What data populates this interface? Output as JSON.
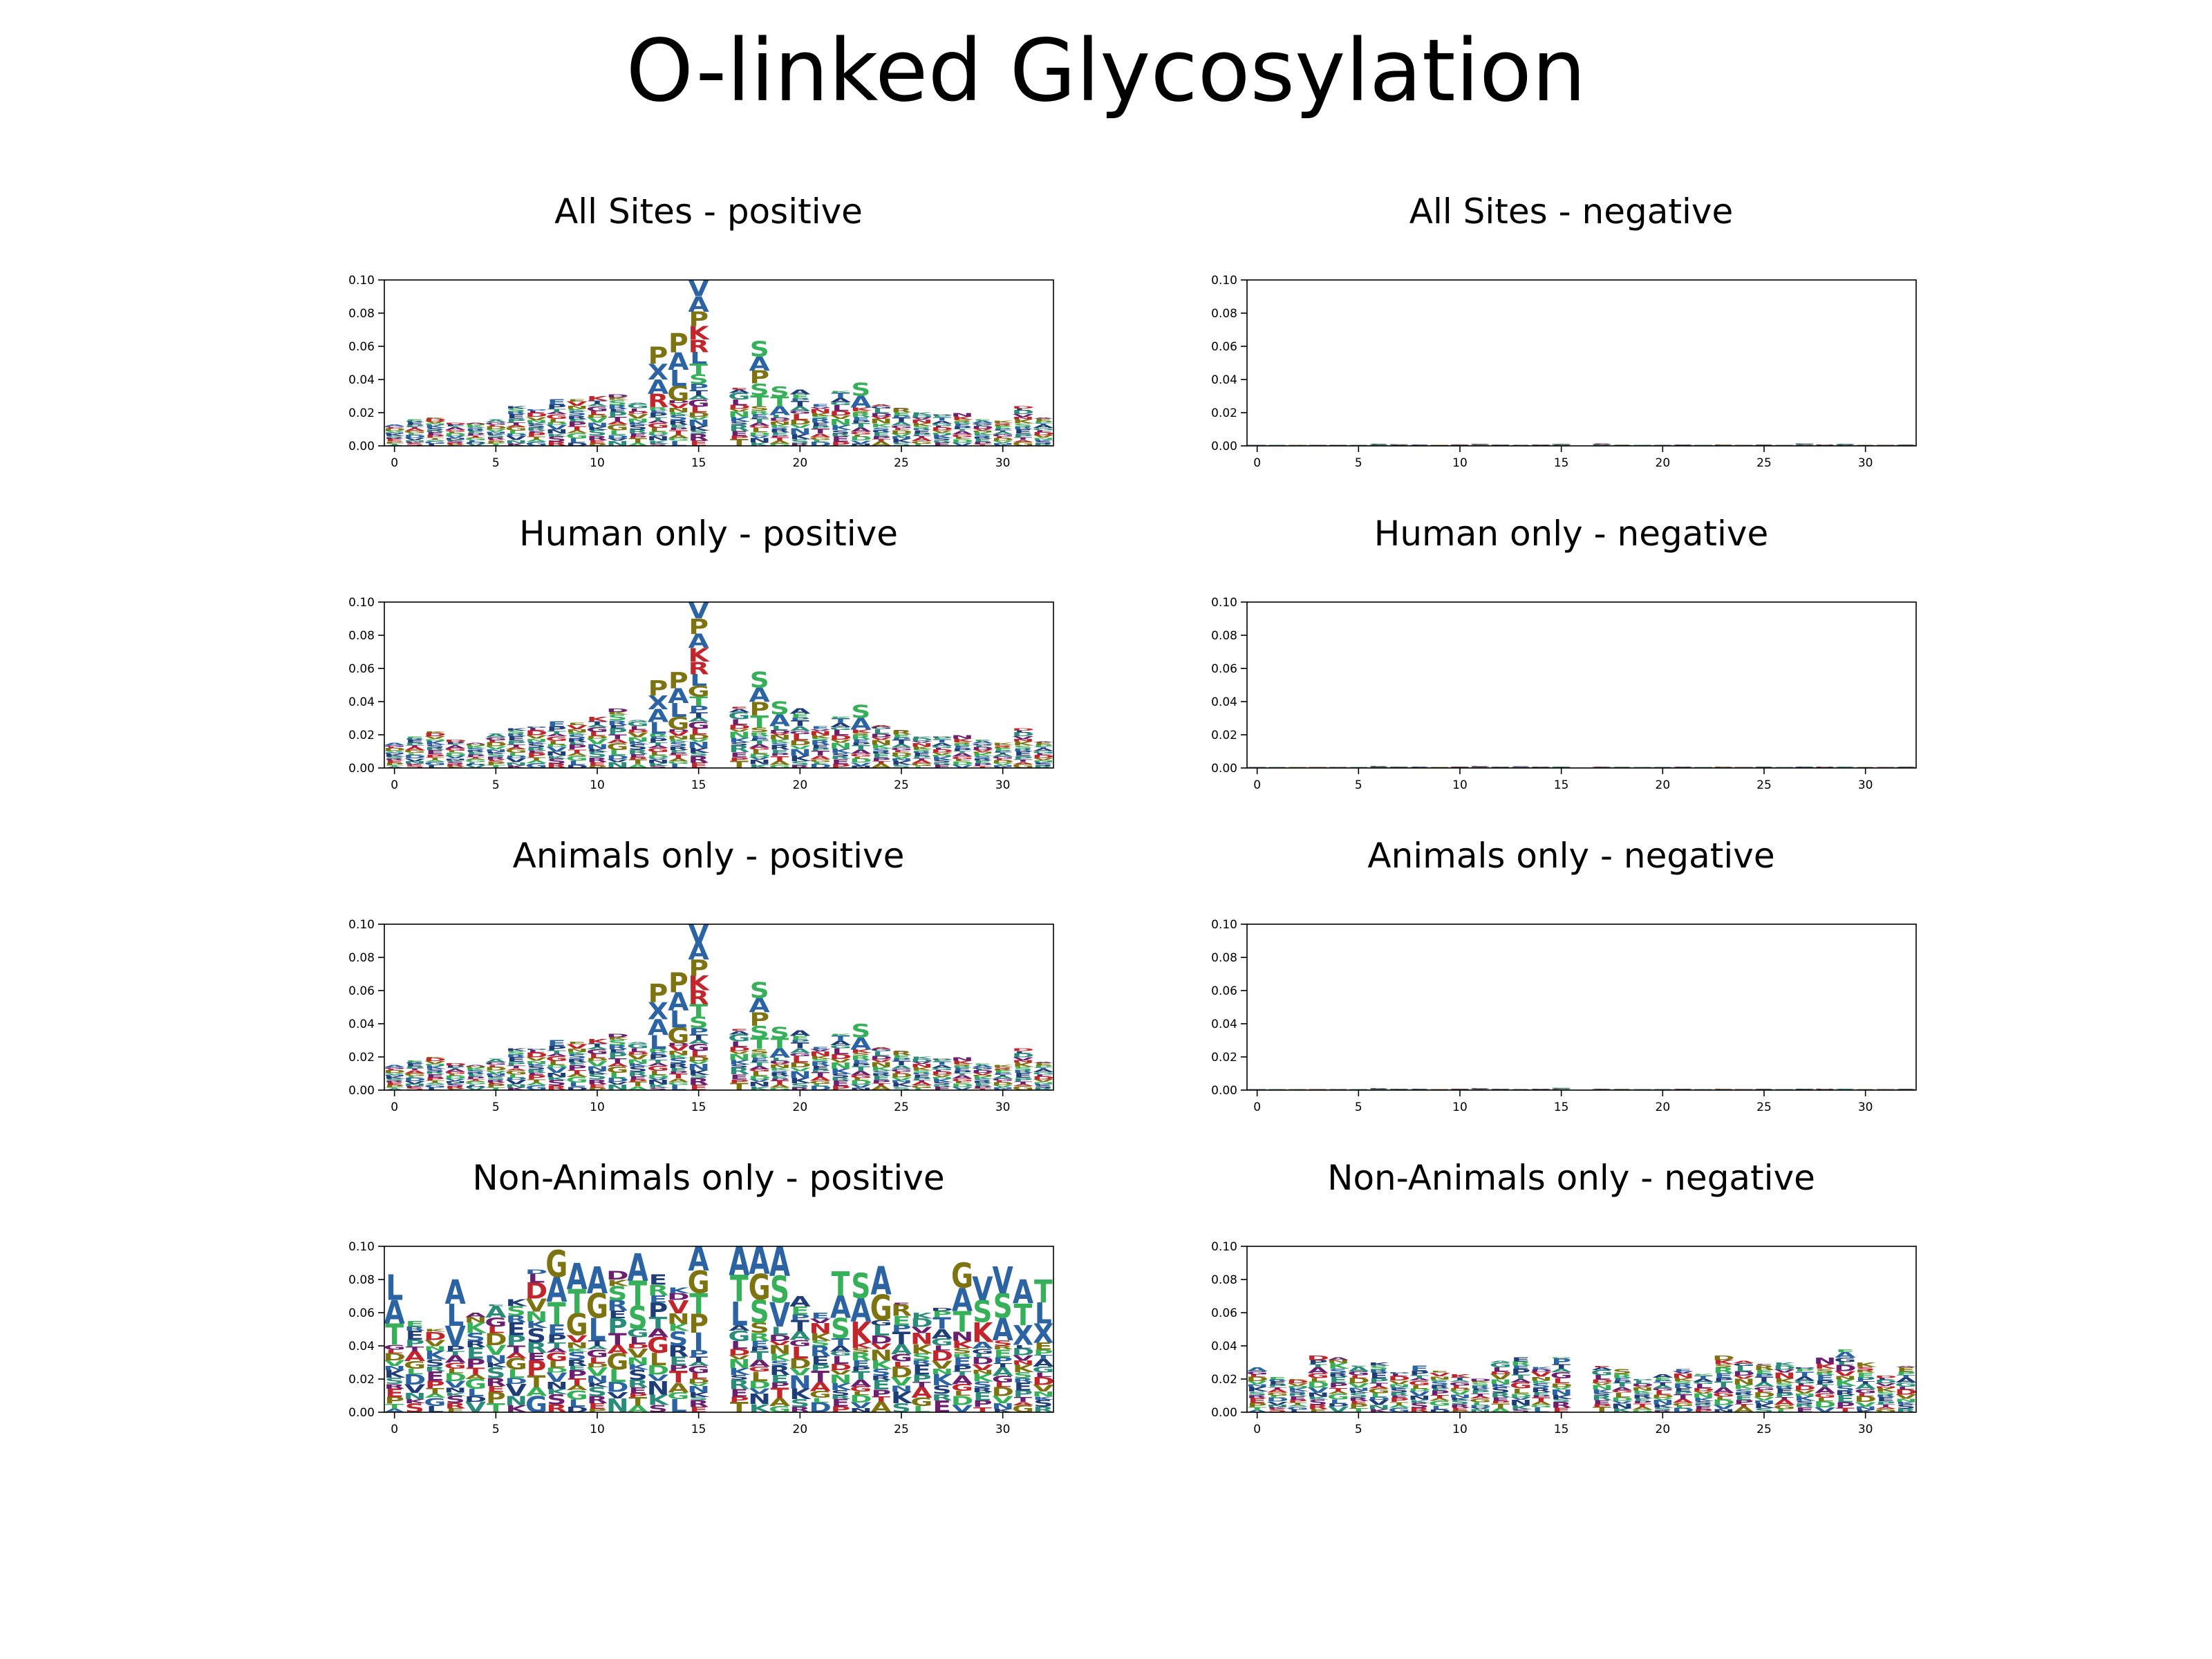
{
  "figure": {
    "title": "O-linked Glycosylation"
  },
  "colors": {
    "axis": "#000000",
    "blue": "#2b63a3",
    "green": "#37b05a",
    "olive": "#7d7310",
    "red": "#c0262b",
    "purple": "#6b1f6e",
    "teal": "#2c8c7a",
    "darkblue": "#1f3e77"
  },
  "axis_defaults": {
    "xlim": [
      -0.5,
      32.5
    ],
    "ylim": [
      0,
      0.1
    ],
    "x_ticks": [
      0,
      5,
      10,
      15,
      20,
      25,
      30
    ],
    "x_tick_labels": [
      "0",
      "5",
      "10",
      "15",
      "20",
      "25",
      "30"
    ],
    "y_ticks": [
      0,
      0.02,
      0.04,
      0.06,
      0.08,
      0.1
    ],
    "y_tick_labels": [
      "0.00",
      "0.02",
      "0.04",
      "0.06",
      "0.08",
      "0.10"
    ]
  },
  "chart_data": [
    {
      "type": "sequence-logo",
      "title": "All Sites - positive",
      "x": [
        0,
        32
      ],
      "missing_position": 16,
      "totals": [
        0.013,
        0.016,
        0.017,
        0.014,
        0.014,
        0.016,
        0.024,
        0.022,
        0.028,
        0.028,
        0.03,
        0.031,
        0.026,
        0.06,
        0.068,
        0.1,
        0,
        0.035,
        0.063,
        0.036,
        0.034,
        0.025,
        0.033,
        0.038,
        0.025,
        0.023,
        0.02,
        0.019,
        0.02,
        0.016,
        0.015,
        0.024,
        0.017
      ],
      "top_letters": [
        {
          "x": 13,
          "letters": [
            "P",
            "X",
            "A",
            "R"
          ]
        },
        {
          "x": 14,
          "letters": [
            "P",
            "A",
            "L",
            "G"
          ]
        },
        {
          "x": 15,
          "letters": [
            "V",
            "A",
            "P",
            "K",
            "R",
            "L",
            "T",
            "S"
          ]
        },
        {
          "x": 18,
          "letters": [
            "S",
            "A",
            "P",
            "S",
            "T"
          ]
        },
        {
          "x": 19,
          "letters": [
            "S",
            "T",
            "A"
          ]
        },
        {
          "x": 23,
          "letters": [
            "S",
            "A"
          ]
        }
      ]
    },
    {
      "type": "sequence-logo",
      "title": "All Sites - negative",
      "x": [
        0,
        32
      ],
      "missing_position": 16,
      "totals": [
        0.0005,
        0.0005,
        0.0004,
        0.0005,
        0.0004,
        0.0005,
        0.0012,
        0.0008,
        0.0006,
        0.0005,
        0.0007,
        0.0011,
        0.0006,
        0.0005,
        0.0006,
        0.0011,
        0,
        0.0012,
        0.0006,
        0.0005,
        0.0005,
        0.0006,
        0.0005,
        0.0006,
        0.0005,
        0.0006,
        0.0005,
        0.0012,
        0.0006,
        0.0011,
        0.0005,
        0.0005,
        0.0006
      ]
    },
    {
      "type": "sequence-logo",
      "title": "Human only - positive",
      "x": [
        0,
        32
      ],
      "missing_position": 16,
      "totals": [
        0.015,
        0.019,
        0.022,
        0.017,
        0.015,
        0.021,
        0.024,
        0.025,
        0.028,
        0.027,
        0.031,
        0.036,
        0.029,
        0.053,
        0.058,
        0.1,
        0,
        0.037,
        0.058,
        0.04,
        0.036,
        0.025,
        0.031,
        0.038,
        0.026,
        0.023,
        0.019,
        0.019,
        0.02,
        0.017,
        0.015,
        0.024,
        0.016
      ],
      "top_letters": [
        {
          "x": 13,
          "letters": [
            "P",
            "X",
            "A",
            "L"
          ]
        },
        {
          "x": 14,
          "letters": [
            "P",
            "A",
            "L",
            "G"
          ]
        },
        {
          "x": 15,
          "letters": [
            "V",
            "P",
            "A",
            "K",
            "R",
            "L",
            "G",
            "T"
          ]
        },
        {
          "x": 18,
          "letters": [
            "S",
            "A",
            "P",
            "T"
          ]
        },
        {
          "x": 19,
          "letters": [
            "S",
            "A"
          ]
        },
        {
          "x": 23,
          "letters": [
            "S",
            "A"
          ]
        }
      ]
    },
    {
      "type": "sequence-logo",
      "title": "Human only - negative",
      "x": [
        0,
        32
      ],
      "missing_position": 16,
      "totals": [
        0.0005,
        0.0005,
        0.0004,
        0.0005,
        0.0004,
        0.0005,
        0.001,
        0.0007,
        0.0006,
        0.0005,
        0.0007,
        0.001,
        0.0006,
        0.0009,
        0.0006,
        0.0006,
        0,
        0.0006,
        0.0006,
        0.0005,
        0.0005,
        0.0006,
        0.0005,
        0.0006,
        0.0005,
        0.0006,
        0.0005,
        0.0006,
        0.0006,
        0.0006,
        0.0005,
        0.0005,
        0.0006
      ]
    },
    {
      "type": "sequence-logo",
      "title": "Animals only - positive",
      "x": [
        0,
        32
      ],
      "missing_position": 16,
      "totals": [
        0.015,
        0.018,
        0.02,
        0.016,
        0.015,
        0.019,
        0.025,
        0.025,
        0.03,
        0.029,
        0.031,
        0.034,
        0.029,
        0.064,
        0.071,
        0.1,
        0,
        0.037,
        0.065,
        0.038,
        0.036,
        0.026,
        0.034,
        0.04,
        0.026,
        0.024,
        0.02,
        0.019,
        0.02,
        0.016,
        0.015,
        0.025,
        0.017
      ],
      "top_letters": [
        {
          "x": 13,
          "letters": [
            "P",
            "X",
            "A",
            "L"
          ]
        },
        {
          "x": 14,
          "letters": [
            "P",
            "A",
            "L",
            "G"
          ]
        },
        {
          "x": 15,
          "letters": [
            "V",
            "A",
            "P",
            "K",
            "R",
            "T",
            "S"
          ]
        },
        {
          "x": 18,
          "letters": [
            "S",
            "A",
            "P",
            "S",
            "T"
          ]
        },
        {
          "x": 19,
          "letters": [
            "S",
            "T",
            "A"
          ]
        },
        {
          "x": 23,
          "letters": [
            "S",
            "A"
          ]
        }
      ]
    },
    {
      "type": "sequence-logo",
      "title": "Animals only - negative",
      "x": [
        0,
        32
      ],
      "missing_position": 16,
      "totals": [
        0.0005,
        0.0005,
        0.0004,
        0.0005,
        0.0004,
        0.0005,
        0.001,
        0.0007,
        0.0006,
        0.0005,
        0.0007,
        0.001,
        0.0006,
        0.0005,
        0.0006,
        0.0012,
        0,
        0.0006,
        0.0006,
        0.0005,
        0.0005,
        0.0006,
        0.0005,
        0.0006,
        0.0005,
        0.0006,
        0.0005,
        0.0006,
        0.0006,
        0.0006,
        0.0005,
        0.0005,
        0.0006
      ]
    },
    {
      "type": "sequence-logo",
      "title": "Non-Animals only - positive",
      "x": [
        0,
        32
      ],
      "missing_position": 16,
      "totals": [
        0.083,
        0.055,
        0.05,
        0.08,
        0.06,
        0.065,
        0.068,
        0.086,
        0.098,
        0.09,
        0.088,
        0.085,
        0.096,
        0.083,
        0.075,
        0.1,
        0,
        0.1,
        0.1,
        0.1,
        0.07,
        0.06,
        0.085,
        0.084,
        0.088,
        0.066,
        0.06,
        0.063,
        0.09,
        0.082,
        0.088,
        0.08,
        0.08
      ],
      "top_letters": [
        {
          "x": 0,
          "letters": [
            "L",
            "A",
            "T"
          ]
        },
        {
          "x": 3,
          "letters": [
            "A",
            "L",
            "V"
          ]
        },
        {
          "x": 8,
          "letters": [
            "G",
            "A",
            "T"
          ]
        },
        {
          "x": 9,
          "letters": [
            "A",
            "T",
            "G"
          ]
        },
        {
          "x": 10,
          "letters": [
            "A",
            "G",
            "L"
          ]
        },
        {
          "x": 12,
          "letters": [
            "A",
            "T",
            "S"
          ]
        },
        {
          "x": 15,
          "letters": [
            "A",
            "G",
            "T",
            "P",
            "I"
          ]
        },
        {
          "x": 17,
          "letters": [
            "A",
            "T",
            "L"
          ]
        },
        {
          "x": 18,
          "letters": [
            "A",
            "G",
            "S"
          ]
        },
        {
          "x": 19,
          "letters": [
            "A",
            "S",
            "V"
          ]
        },
        {
          "x": 22,
          "letters": [
            "T",
            "A",
            "S"
          ]
        },
        {
          "x": 23,
          "letters": [
            "S",
            "A",
            "K"
          ]
        },
        {
          "x": 24,
          "letters": [
            "A",
            "G"
          ]
        },
        {
          "x": 28,
          "letters": [
            "G",
            "A",
            "T"
          ]
        },
        {
          "x": 29,
          "letters": [
            "V",
            "S",
            "K"
          ]
        },
        {
          "x": 30,
          "letters": [
            "V",
            "S",
            "A"
          ]
        },
        {
          "x": 31,
          "letters": [
            "A",
            "T",
            "X"
          ]
        },
        {
          "x": 32,
          "letters": [
            "T",
            "L",
            "X"
          ]
        }
      ]
    },
    {
      "type": "sequence-logo",
      "title": "Non-Animals only - negative",
      "x": [
        0,
        32
      ],
      "missing_position": 16,
      "totals": [
        0.027,
        0.021,
        0.02,
        0.034,
        0.033,
        0.028,
        0.03,
        0.024,
        0.028,
        0.025,
        0.023,
        0.02,
        0.031,
        0.033,
        0.027,
        0.033,
        0,
        0.028,
        0.026,
        0.02,
        0.023,
        0.026,
        0.023,
        0.034,
        0.031,
        0.029,
        0.03,
        0.027,
        0.033,
        0.038,
        0.03,
        0.022,
        0.028
      ]
    }
  ]
}
